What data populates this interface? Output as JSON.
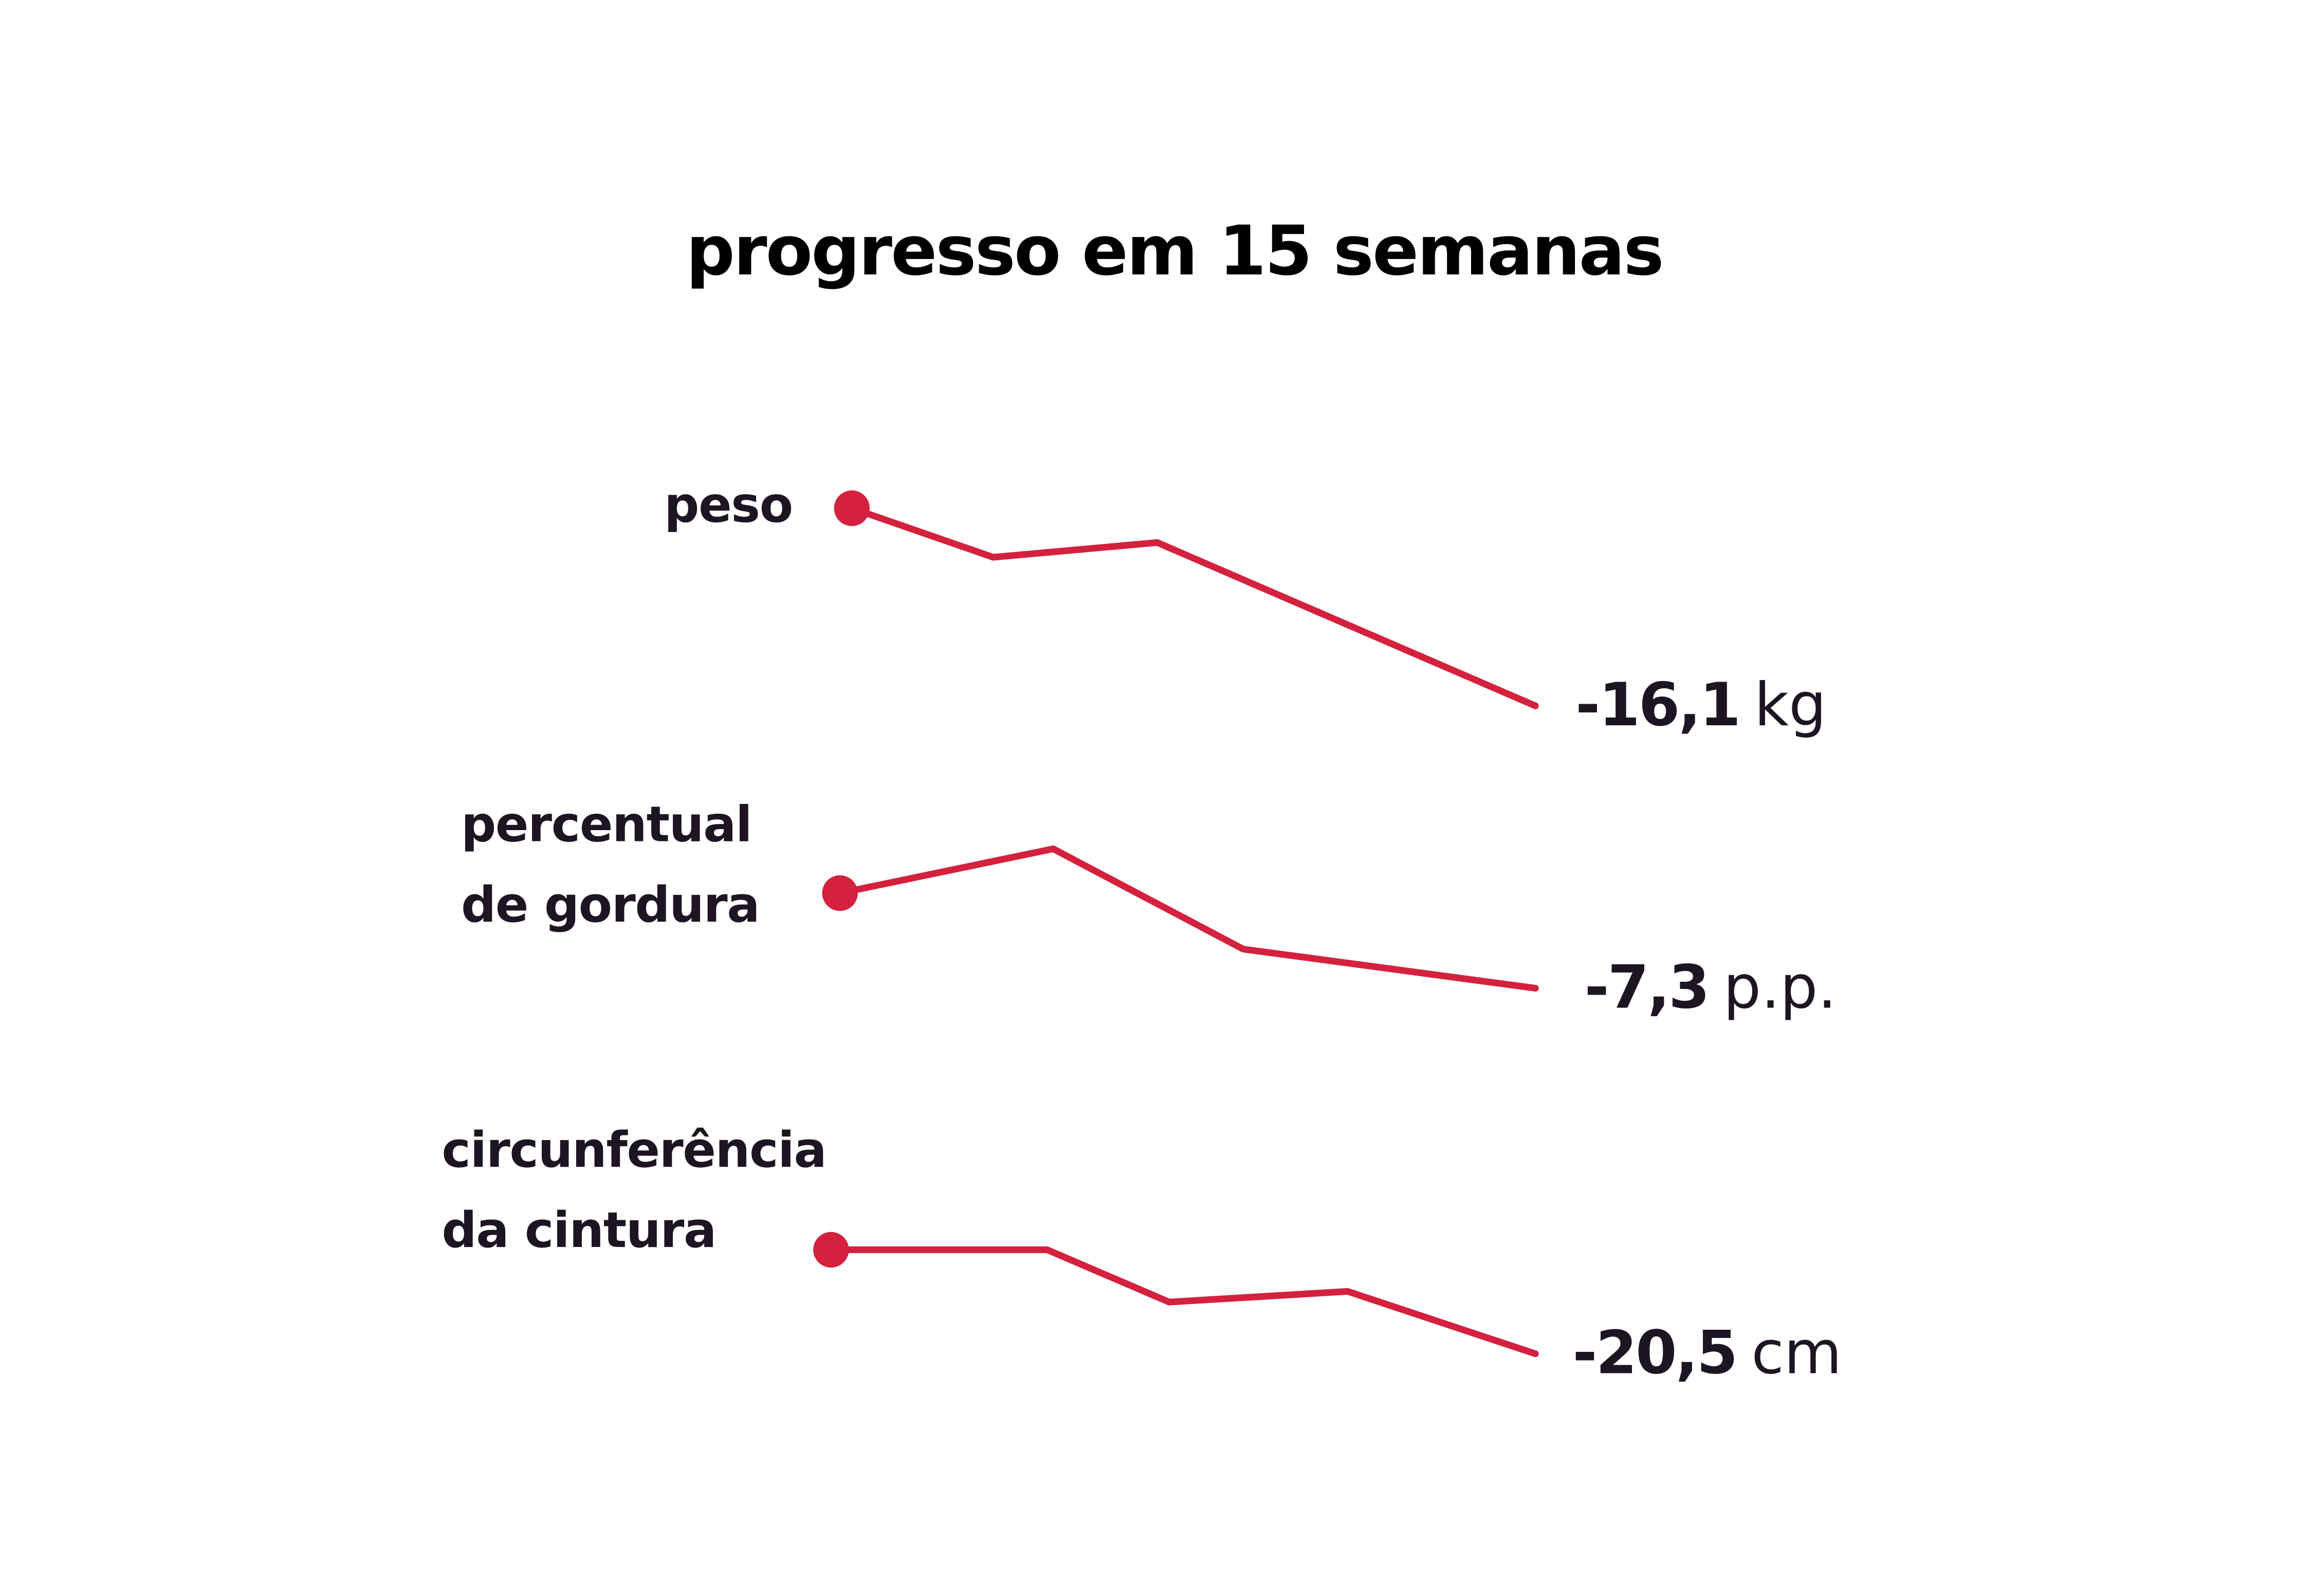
{
  "title": "progresso em 15 semanas",
  "color": "#d4213d",
  "chart_data": [
    {
      "type": "line",
      "label": [
        "peso"
      ],
      "x": [
        0,
        3.1,
        6.7,
        15
      ],
      "values": [
        0,
        -4.0,
        -2.8,
        -16.1
      ],
      "change": -16.1,
      "change_label": "-16,1",
      "unit": "kg"
    },
    {
      "type": "line",
      "label": [
        "percentual",
        "de gordura"
      ],
      "x": [
        0,
        4.6,
        8.7,
        15
      ],
      "values": [
        0,
        3.4,
        -4.3,
        -7.3
      ],
      "change": -7.3,
      "change_label": "-7,3",
      "unit": "p.p."
    },
    {
      "type": "line",
      "label": [
        "circunferência",
        "da cintura"
      ],
      "x": [
        0,
        4.6,
        7.2,
        11.0,
        15
      ],
      "values": [
        0,
        0,
        -10.3,
        -8.2,
        -20.5
      ],
      "change": -20.5,
      "change_label": "-20,5",
      "unit": "cm"
    }
  ]
}
